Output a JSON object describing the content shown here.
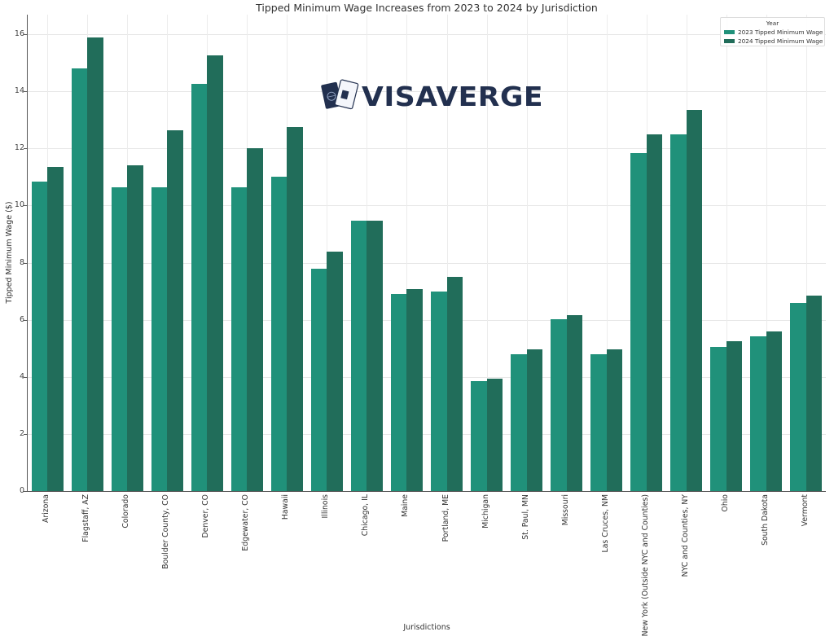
{
  "chart_data": {
    "type": "bar",
    "title": "Tipped Minimum Wage Increases from 2023 to 2024 by Jurisdiction",
    "xlabel": "Jurisdictions",
    "ylabel": "Tipped Minimum Wage ($)",
    "ylim": [
      0,
      16.7
    ],
    "yticks": [
      0,
      2,
      4,
      6,
      8,
      10,
      12,
      14,
      16
    ],
    "grid": true,
    "legend": {
      "title": "Year",
      "position": "upper right"
    },
    "categories": [
      "Arizona",
      "Flagstaff, AZ",
      "Colorado",
      "Boulder County, CO",
      "Denver, CO",
      "Edgewater, CO",
      "Hawaii",
      "Illinois",
      "Chicago, IL",
      "Maine",
      "Portland, ME",
      "Michigan",
      "St. Paul, MN",
      "Missouri",
      "Las Cruces, NM",
      "New York (Outside NYC and Counties)",
      "NYC and Counties, NY",
      "Ohio",
      "South Dakota",
      "Vermont"
    ],
    "series": [
      {
        "name": "2023 Tipped Minimum Wage",
        "color": "#20917a",
        "values": [
          10.85,
          14.8,
          10.63,
          10.63,
          14.27,
          10.63,
          11.0,
          7.8,
          9.48,
          6.9,
          7.0,
          3.84,
          4.78,
          6.01,
          4.78,
          11.85,
          12.5,
          5.05,
          5.41,
          6.58
        ]
      },
      {
        "name": "2024 Tipped Minimum Wage",
        "color": "#216d5a",
        "values": [
          11.35,
          15.9,
          11.4,
          12.65,
          15.27,
          12.0,
          12.75,
          8.4,
          9.48,
          7.08,
          7.5,
          3.93,
          4.95,
          6.15,
          4.95,
          12.5,
          13.35,
          5.25,
          5.6,
          6.84
        ]
      }
    ]
  },
  "watermark": {
    "text": "VISAVERGE",
    "icon": "passport-icon"
  }
}
